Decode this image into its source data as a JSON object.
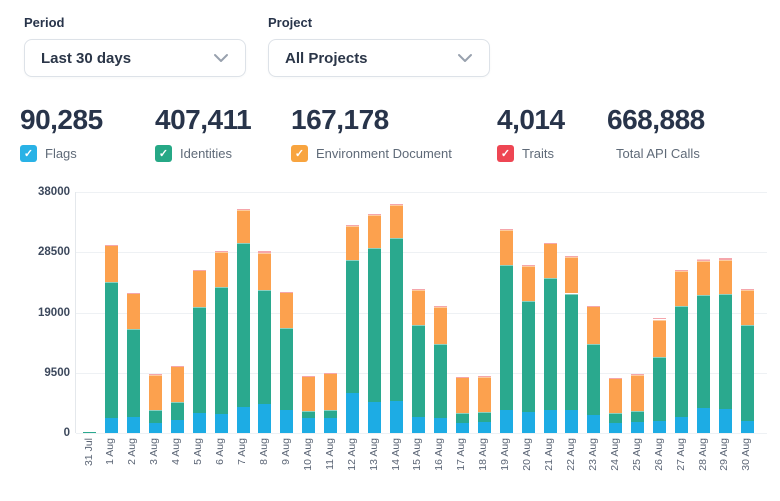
{
  "filters": {
    "period": {
      "label": "Period",
      "value": "Last 30 days"
    },
    "project": {
      "label": "Project",
      "value": "All Projects"
    }
  },
  "stats": [
    {
      "value": "90,285",
      "label": "Flags",
      "checkbox": true,
      "checked": true,
      "color": "#29b2e6"
    },
    {
      "value": "407,411",
      "label": "Identities",
      "checkbox": true,
      "checked": true,
      "color": "#26a886"
    },
    {
      "value": "167,178",
      "label": "Environment Document",
      "checkbox": true,
      "checked": true,
      "color": "#f8a43f"
    },
    {
      "value": "4,014",
      "label": "Traits",
      "checkbox": true,
      "checked": true,
      "color": "#ee4653"
    },
    {
      "value": "668,888",
      "label": "Total API Calls",
      "checkbox": false,
      "checked": false,
      "color": ""
    }
  ],
  "chart_data": {
    "type": "bar",
    "stacked": true,
    "title": "",
    "xlabel": "",
    "ylabel": "",
    "ylim": [
      0,
      38000
    ],
    "yticks": [
      0,
      9500,
      19000,
      28500,
      38000
    ],
    "grid": true,
    "legend_position": "none",
    "categories": [
      "31 Jul",
      "1 Aug",
      "2 Aug",
      "3 Aug",
      "4 Aug",
      "5 Aug",
      "6 Aug",
      "7 Aug",
      "8 Aug",
      "9 Aug",
      "10 Aug",
      "11 Aug",
      "12 Aug",
      "13 Aug",
      "14 Aug",
      "15 Aug",
      "16 Aug",
      "17 Aug",
      "18 Aug",
      "19 Aug",
      "20 Aug",
      "21 Aug",
      "22 Aug",
      "23 Aug",
      "24 Aug",
      "25 Aug",
      "26 Aug",
      "27 Aug",
      "28 Aug",
      "29 Aug",
      "30 Aug"
    ],
    "series": [
      {
        "name": "Flags",
        "color": "#1dace4",
        "values": [
          0,
          2400,
          2500,
          1600,
          2000,
          3100,
          3000,
          4100,
          4500,
          3700,
          2300,
          2400,
          6300,
          4900,
          5100,
          2600,
          2300,
          1600,
          1700,
          3700,
          3300,
          3600,
          3700,
          2800,
          1600,
          1700,
          1900,
          2500,
          4000,
          3800,
          1900
        ]
      },
      {
        "name": "Identities",
        "color": "#2aa98e",
        "values": [
          150,
          21400,
          13900,
          2000,
          2900,
          16700,
          20100,
          25900,
          18100,
          12900,
          1200,
          1300,
          21000,
          24300,
          25700,
          14400,
          11800,
          1600,
          1600,
          22800,
          17500,
          20800,
          18300,
          11200,
          1600,
          1800,
          10100,
          17500,
          17700,
          18100,
          15200
        ]
      },
      {
        "name": "Environment Document",
        "color": "#fca14e",
        "values": [
          0,
          5800,
          5600,
          5600,
          5600,
          5900,
          5400,
          5100,
          5800,
          5600,
          5500,
          5700,
          5400,
          5100,
          5100,
          5600,
          5800,
          5600,
          5600,
          5500,
          5600,
          5500,
          5700,
          6000,
          5400,
          5700,
          5900,
          5600,
          5400,
          5400,
          5500
        ]
      },
      {
        "name": "Traits",
        "color": "#f5a6ab",
        "values": [
          0,
          50,
          60,
          30,
          40,
          80,
          250,
          300,
          260,
          60,
          30,
          40,
          100,
          260,
          220,
          60,
          50,
          30,
          30,
          150,
          100,
          120,
          210,
          60,
          30,
          40,
          210,
          80,
          350,
          300,
          60
        ]
      }
    ]
  }
}
